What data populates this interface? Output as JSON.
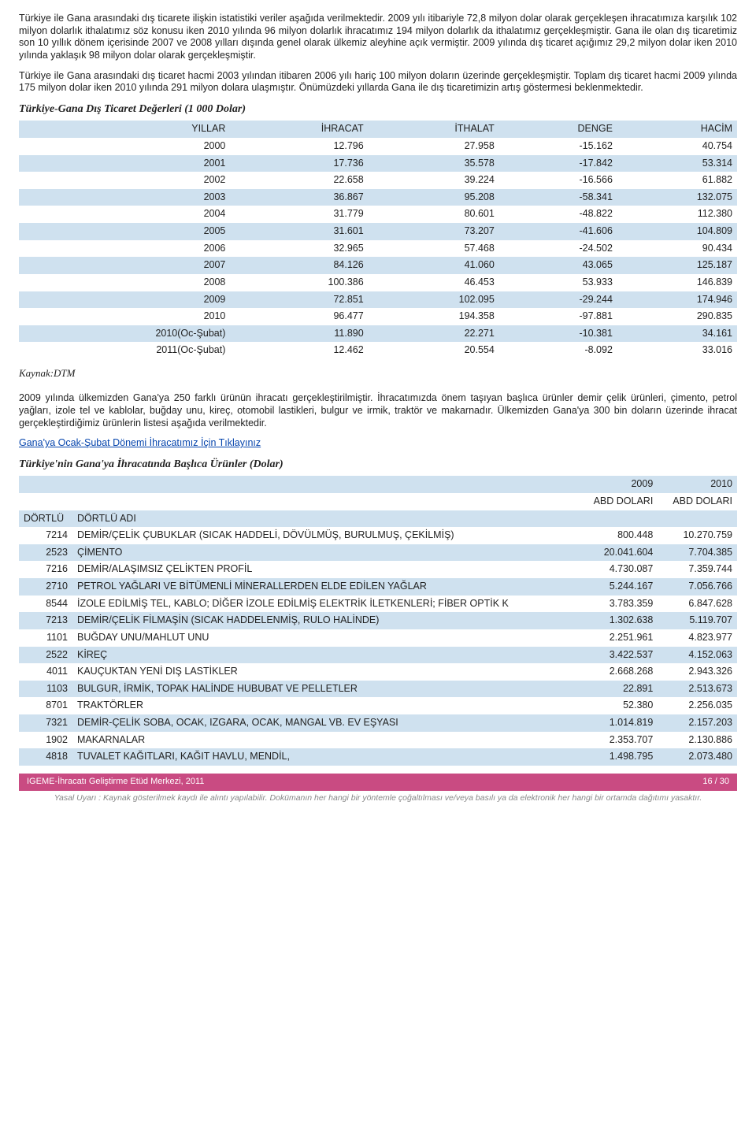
{
  "paragraphs": {
    "p1": "Türkiye ile Gana arasındaki dış ticarete ilişkin istatistiki veriler aşağıda verilmektedir. 2009 yılı itibariyle 72,8 milyon dolar olarak gerçekleşen ihracatımıza karşılık 102 milyon dolarlık ithalatımız söz konusu iken 2010 yılında 96 milyon dolarlık ihracatımız 194 milyon dolarlık da ithalatımız gerçekleşmiştir. Gana ile olan dış ticaretimiz son 10 yıllık dönem içerisinde 2007 ve 2008 yılları dışında genel olarak ülkemiz aleyhine açık vermiştir. 2009 yılında dış ticaret açığımız 29,2 milyon dolar iken 2010 yılında yaklaşık 98 milyon dolar olarak gerçekleşmiştir.",
    "p2": "Türkiye ile Gana arasındaki dış ticaret hacmi 2003 yılından itibaren 2006 yılı hariç 100 milyon doların üzerinde gerçekleşmiştir. Toplam dış ticaret hacmi 2009 yılında 175 milyon dolar iken 2010 yılında 291 milyon dolara ulaşmıştır. Önümüzdeki yıllarda Gana ile dış ticaretimizin artış göstermesi beklenmektedir.",
    "p3": "2009 yılında ülkemizden Gana'ya 250 farklı ürünün ihracatı gerçekleştirilmiştir. İhracatımızda önem taşıyan başlıca ürünler demir çelik ürünleri, çimento, petrol yağları, izole tel ve kablolar, buğday unu, kireç, otomobil lastikleri, bulgur ve irmik, traktör ve makarnadır. Ülkemizden Gana'ya 300 bin doların üzerinde ihracat gerçekleştirdiğimiz ürünlerin listesi aşağıda verilmektedir."
  },
  "table1": {
    "title": "Türkiye-Gana Dış Ticaret Değerleri (1 000 Dolar)",
    "headers": [
      "YILLAR",
      "İHRACAT",
      "İTHALAT",
      "DENGE",
      "HACİM"
    ],
    "rows": [
      [
        "2000",
        "12.796",
        "27.958",
        "-15.162",
        "40.754"
      ],
      [
        "2001",
        "17.736",
        "35.578",
        "-17.842",
        "53.314"
      ],
      [
        "2002",
        "22.658",
        "39.224",
        "-16.566",
        "61.882"
      ],
      [
        "2003",
        "36.867",
        "95.208",
        "-58.341",
        "132.075"
      ],
      [
        "2004",
        "31.779",
        "80.601",
        "-48.822",
        "112.380"
      ],
      [
        "2005",
        "31.601",
        "73.207",
        "-41.606",
        "104.809"
      ],
      [
        "2006",
        "32.965",
        "57.468",
        "-24.502",
        "90.434"
      ],
      [
        "2007",
        "84.126",
        "41.060",
        "43.065",
        "125.187"
      ],
      [
        "2008",
        "100.386",
        "46.453",
        "53.933",
        "146.839"
      ],
      [
        "2009",
        "72.851",
        "102.095",
        "-29.244",
        "174.946"
      ],
      [
        "2010",
        "96.477",
        "194.358",
        "-97.881",
        "290.835"
      ],
      [
        "2010(Oc-Şubat)",
        "11.890",
        "22.271",
        "-10.381",
        "34.161"
      ],
      [
        "2011(Oc-Şubat)",
        "12.462",
        "20.554",
        "-8.092",
        "33.016"
      ]
    ],
    "source": "Kaynak:DTM"
  },
  "link_text": "Gana'ya Ocak-Şubat Dönemi İhracatımız İçin Tıklayınız",
  "table2": {
    "title": "Türkiye'nin Gana'ya İhracatında Başlıca Ürünler (Dolar)",
    "year_headers": [
      "2009",
      "2010"
    ],
    "sub_headers": [
      "ABD DOLARI",
      "ABD DOLARI"
    ],
    "col_labels": [
      "DÖRTLÜ",
      "DÖRTLÜ ADI"
    ],
    "rows": [
      [
        "7214",
        "DEMİR/ÇELİK ÇUBUKLAR (SICAK HADDELİ, DÖVÜLMÜŞ, BURULMUŞ, ÇEKİLMİŞ)",
        "800.448",
        "10.270.759"
      ],
      [
        "2523",
        "ÇİMENTO",
        "20.041.604",
        "7.704.385"
      ],
      [
        "7216",
        "DEMİR/ALAŞIMSIZ ÇELİKTEN PROFİL",
        "4.730.087",
        "7.359.744"
      ],
      [
        "2710",
        "PETROL YAĞLARI VE BİTÜMENLİ MİNERALLERDEN ELDE EDİLEN YAĞLAR",
        "5.244.167",
        "7.056.766"
      ],
      [
        "8544",
        "İZOLE EDİLMİŞ TEL, KABLO; DİĞER İZOLE EDİLMİŞ ELEKTRİK İLETKENLERİ; FİBER OPTİK K",
        "3.783.359",
        "6.847.628"
      ],
      [
        "7213",
        "DEMİR/ÇELİK FİLMAŞİN (SICAK HADDELENMİŞ, RULO HALİNDE)",
        "1.302.638",
        "5.119.707"
      ],
      [
        "1101",
        "BUĞDAY UNU/MAHLUT UNU",
        "2.251.961",
        "4.823.977"
      ],
      [
        "2522",
        "KİREÇ",
        "3.422.537",
        "4.152.063"
      ],
      [
        "4011",
        "KAUÇUKTAN YENİ DIŞ LASTİKLER",
        "2.668.268",
        "2.943.326"
      ],
      [
        "1103",
        "BULGUR, İRMİK, TOPAK HALİNDE HUBUBAT VE PELLETLER",
        "22.891",
        "2.513.673"
      ],
      [
        "8701",
        "TRAKTÖRLER",
        "52.380",
        "2.256.035"
      ],
      [
        "7321",
        "DEMİR-ÇELİK SOBA, OCAK, IZGARA, OCAK, MANGAL VB. EV EŞYASI",
        "1.014.819",
        "2.157.203"
      ],
      [
        "1902",
        "MAKARNALAR",
        "2.353.707",
        "2.130.886"
      ],
      [
        "4818",
        "TUVALET KAĞITLARI, KAĞIT HAVLU, MENDİL,",
        "1.498.795",
        "2.073.480"
      ]
    ]
  },
  "footer": {
    "left": "IGEME-İhracatı Geliştirme Etüd Merkezi, 2011",
    "right": "16 / 30",
    "disclaimer": "Yasal Uyarı : Kaynak gösterilmek kaydı ile alıntı yapılabilir. Dokümanın her hangi bir yöntemle çoğaltılması ve/veya basılı ya da elektronik her hangi bir ortamda dağıtımı yasaktır."
  },
  "style": {
    "stripe_color": "#cfe1ef",
    "footer_bar_color": "#c94b82"
  }
}
